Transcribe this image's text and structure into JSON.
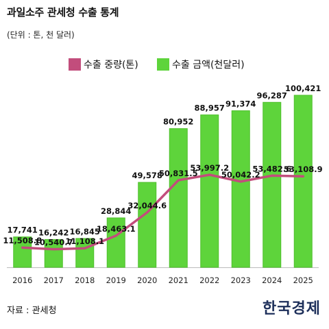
{
  "header": {
    "title": "과일소주 관세청 수출 통계",
    "unit": "(단위 : 톤, 천 달러)"
  },
  "legend": {
    "line_label": "수출 중량(톤)",
    "bar_label": "수출 금액(천달러)"
  },
  "footer": {
    "source": "자료 : 관세청",
    "logo": "한국경제"
  },
  "colors": {
    "bar": "#5ed43b",
    "bar_border": "#4fbf2c",
    "line": "#c24d7c",
    "axis": "#bbbbbb"
  },
  "chart_data": {
    "type": "bar",
    "categories": [
      "2016",
      "2017",
      "2018",
      "2019",
      "2020",
      "2021",
      "2022",
      "2023",
      "2024",
      "2025"
    ],
    "series": [
      {
        "name": "수출 금액(천달러)",
        "type": "bar",
        "values": [
          17741,
          16242,
          16845,
          28844,
          49578,
          80952,
          88957,
          91374,
          96287,
          100421
        ],
        "labels": [
          "17,741",
          "16,242",
          "16,845",
          "28,844",
          "49,578",
          "80,952",
          "88,957",
          "91,374",
          "96,287",
          "100,421"
        ]
      },
      {
        "name": "수출 중량(톤)",
        "type": "line",
        "values": [
          11508.8,
          10540.7,
          11108.1,
          18463.1,
          32044.6,
          50831.5,
          53997.2,
          50042.2,
          53482.6,
          53108.9
        ],
        "labels": [
          "11,508.8",
          "10,540.7",
          "11,108.1",
          "18,463.1",
          "32,044.6",
          "50,831.5",
          "53,997.2",
          "50,042.2",
          "53,482.6",
          "53,108.9"
        ]
      }
    ],
    "ylim": [
      0,
      120000
    ],
    "grid": false,
    "legend_position": "top"
  }
}
